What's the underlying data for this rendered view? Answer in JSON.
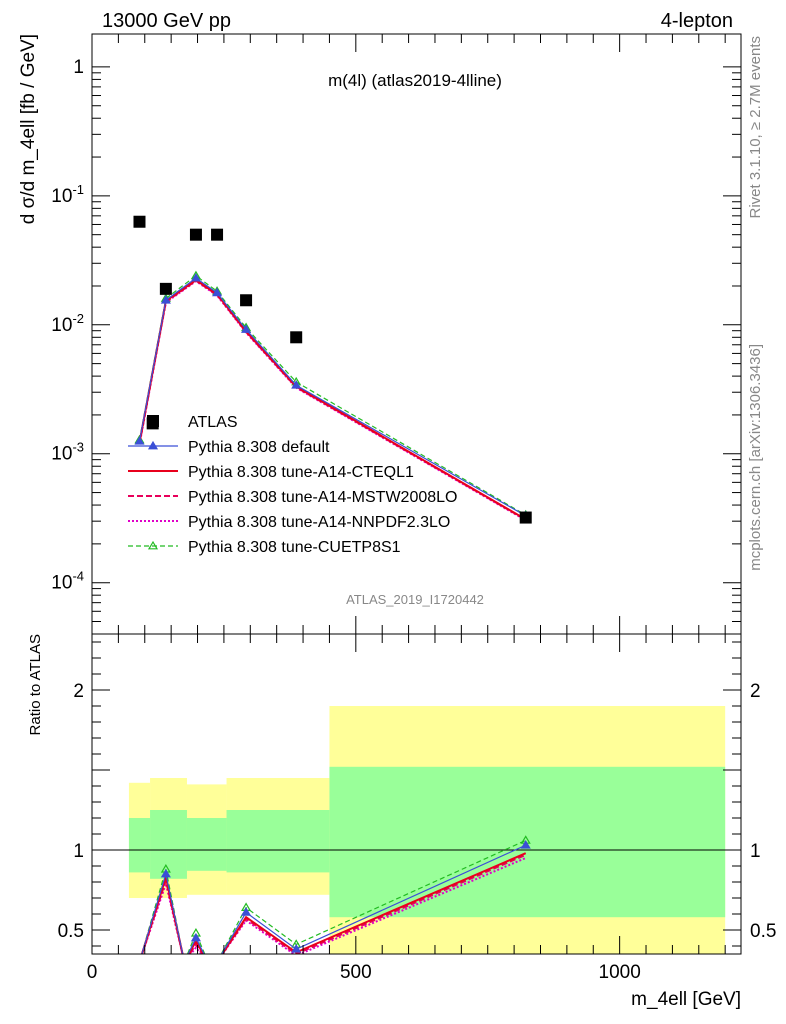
{
  "header": {
    "left": "13000 GeV pp",
    "right": "4-lepton"
  },
  "side": {
    "rivet": "Rivet 3.1.10, ≥ 2.7M events",
    "mcplots": "mcplots.cern.ch [arXiv:1306.3436]"
  },
  "colors": {
    "data": "#000000",
    "default": "#3b4fd6",
    "cteql1": "#e8001c",
    "mstw": "#e8005a",
    "nnpdf": "#e000c8",
    "cuetp8s1": "#22bb22",
    "band_outer": "#ffff99",
    "band_inner": "#99ff99"
  },
  "chart_data": [
    {
      "type": "scatter",
      "title": "m(4l) (atlas2019-4lline)",
      "watermark": "ATLAS_2019_I1720442",
      "ylabel": "d σ/d m_4ell [fb / GeV]",
      "yscale": "log",
      "xlim": [
        0,
        1230
      ],
      "ylim": [
        4e-05,
        1.8
      ],
      "y_ticks": [
        "10^-4",
        "10^-3",
        "10^-2",
        "10^-1",
        "1"
      ],
      "legend_position": "middle-left",
      "series": [
        {
          "name": "ATLAS",
          "key": "data",
          "x": [
            90,
            115,
            140,
            197,
            237,
            292,
            387,
            822
          ],
          "y": [
            0.063,
            0.00172,
            0.019,
            0.05,
            0.05,
            0.0155,
            0.008,
            0.00032
          ]
        },
        {
          "name": "Pythia 8.308 default",
          "key": "default",
          "x": [
            90,
            140,
            197,
            237,
            292,
            387,
            822
          ],
          "y": [
            0.00125,
            0.0155,
            0.023,
            0.0177,
            0.0092,
            0.0034,
            0.00033
          ]
        },
        {
          "name": "Pythia 8.308 tune-A14-CTEQL1",
          "key": "cteql1",
          "x": [
            90,
            140,
            197,
            237,
            292,
            387,
            822
          ],
          "y": [
            0.00122,
            0.0153,
            0.0222,
            0.0173,
            0.0089,
            0.00332,
            0.00031
          ]
        },
        {
          "name": "Pythia 8.308 tune-A14-MSTW2008LO",
          "key": "mstw",
          "x": [
            90,
            140,
            197,
            237,
            292,
            387,
            822
          ],
          "y": [
            0.0012,
            0.0151,
            0.022,
            0.0171,
            0.0088,
            0.00328,
            0.000308
          ]
        },
        {
          "name": "Pythia 8.308 tune-A14-NNPDF2.3LO",
          "key": "nnpdf",
          "x": [
            90,
            140,
            197,
            237,
            292,
            387,
            822
          ],
          "y": [
            0.00118,
            0.0149,
            0.0218,
            0.0169,
            0.0087,
            0.00325,
            0.000305
          ]
        },
        {
          "name": "Pythia 8.308 tune-CUETP8S1",
          "key": "cuetp8s1",
          "x": [
            90,
            140,
            197,
            237,
            292,
            387,
            822
          ],
          "y": [
            0.00128,
            0.016,
            0.024,
            0.0182,
            0.0095,
            0.0036,
            0.000335
          ]
        }
      ]
    },
    {
      "type": "line",
      "ylabel": "Ratio to ATLAS",
      "xlabel": "m_4ell [GeV]",
      "xlim": [
        0,
        1230
      ],
      "ylim": [
        0.35,
        2.35
      ],
      "x_ticks": [
        0,
        500,
        1000
      ],
      "y_ticks": [
        0.5,
        1,
        2
      ],
      "reference_line": 1,
      "bands": [
        {
          "x0": 70,
          "x1": 110,
          "inner": [
            0.86,
            1.2
          ],
          "outer": [
            0.7,
            1.42
          ]
        },
        {
          "x0": 110,
          "x1": 180,
          "inner": [
            0.82,
            1.25
          ],
          "outer": [
            0.7,
            1.45
          ]
        },
        {
          "x0": 180,
          "x1": 255,
          "inner": [
            0.87,
            1.2
          ],
          "outer": [
            0.72,
            1.41
          ]
        },
        {
          "x0": 255,
          "x1": 450,
          "inner": [
            0.86,
            1.25
          ],
          "outer": [
            0.72,
            1.45
          ]
        },
        {
          "x0": 450,
          "x1": 1200,
          "inner": [
            0.58,
            1.52
          ],
          "outer": [
            0.35,
            1.9
          ]
        }
      ],
      "series": [
        {
          "name": "Pythia 8.308 default",
          "key": "default",
          "x": [
            90,
            140,
            175,
            197,
            220,
            237,
            292,
            387,
            822
          ],
          "y": [
            0.3,
            0.85,
            0.3,
            0.45,
            0.3,
            0.3,
            0.61,
            0.38,
            1.03
          ]
        },
        {
          "name": "Pythia 8.308 tune-A14-CTEQL1",
          "key": "cteql1",
          "x": [
            90,
            140,
            175,
            197,
            220,
            237,
            292,
            387,
            822
          ],
          "y": [
            0.3,
            0.83,
            0.3,
            0.43,
            0.3,
            0.3,
            0.58,
            0.36,
            0.98
          ]
        },
        {
          "name": "Pythia 8.308 tune-A14-MSTW2008LO",
          "key": "mstw",
          "x": [
            90,
            140,
            175,
            197,
            220,
            237,
            292,
            387,
            822
          ],
          "y": [
            0.3,
            0.81,
            0.3,
            0.41,
            0.3,
            0.3,
            0.57,
            0.35,
            0.97
          ]
        },
        {
          "name": "Pythia 8.308 tune-A14-NNPDF2.3LO",
          "key": "nnpdf",
          "x": [
            90,
            140,
            175,
            197,
            220,
            237,
            292,
            387,
            822
          ],
          "y": [
            0.3,
            0.79,
            0.3,
            0.39,
            0.3,
            0.3,
            0.56,
            0.34,
            0.95
          ]
        },
        {
          "name": "Pythia 8.308 tune-CUETP8S1",
          "key": "cuetp8s1",
          "x": [
            90,
            140,
            175,
            197,
            220,
            237,
            292,
            387,
            822
          ],
          "y": [
            0.3,
            0.88,
            0.3,
            0.48,
            0.3,
            0.3,
            0.64,
            0.41,
            1.06
          ]
        }
      ]
    }
  ]
}
